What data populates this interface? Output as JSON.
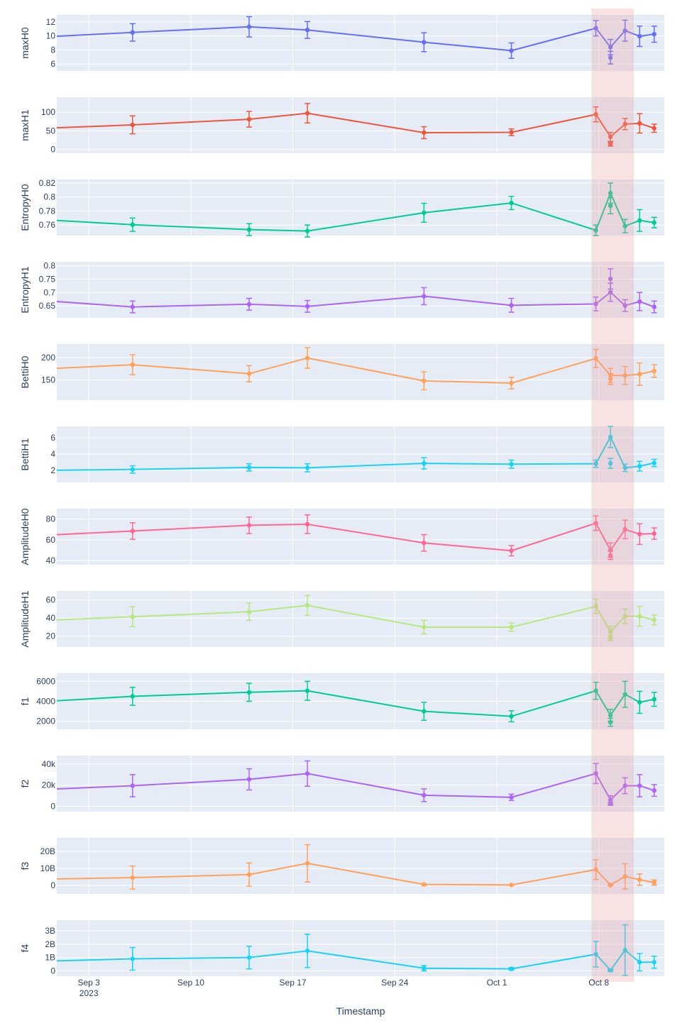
{
  "chart_data": {
    "type": "line",
    "xlabel": "Timestamp",
    "x_tick_labels": [
      "Sep 3",
      "Sep 10",
      "Sep 17",
      "Sep 24",
      "Oct 1",
      "Oct 8"
    ],
    "x_tick_days": [
      3,
      10,
      17,
      24,
      31,
      38
    ],
    "x_year_label": "2023",
    "x_range_days": [
      0.8,
      42.5
    ],
    "highlight_region_days": [
      37.5,
      40.4
    ],
    "highlight_color": "#e8a0a0",
    "grid": true,
    "x": [
      6,
      14,
      18,
      26,
      32,
      37.8,
      38.8,
      39.8,
      40.8,
      41.8
    ],
    "panels": [
      {
        "name": "maxH0",
        "color": "#636efa",
        "ylim": [
          5,
          13
        ],
        "yticks": [
          6,
          8,
          10,
          12
        ],
        "ytick_labels": [
          "6",
          "8",
          "10",
          "12"
        ],
        "lead_value": 9.95,
        "values": [
          10.5,
          11.3,
          10.85,
          9.1,
          7.9,
          11.1,
          8.4,
          10.75,
          9.95,
          10.25
        ],
        "errors": [
          1.25,
          1.45,
          1.2,
          1.35,
          1.1,
          1.1,
          1.1,
          1.5,
          1.45,
          1.15
        ],
        "extra_points": [
          {
            "x": 38.8,
            "value": 6.9,
            "error": 0.9
          }
        ]
      },
      {
        "name": "maxH1",
        "color": "#ef553b",
        "ylim": [
          -10,
          140
        ],
        "yticks": [
          0,
          50,
          100
        ],
        "ytick_labels": [
          "0",
          "50",
          "100"
        ],
        "lead_value": 58,
        "values": [
          66,
          81,
          97,
          45,
          46,
          94,
          34,
          68,
          70,
          57
        ],
        "errors": [
          24,
          21,
          26,
          16,
          9,
          20,
          12,
          15,
          26,
          11
        ],
        "extra_points": [
          {
            "x": 38.8,
            "value": 14,
            "error": 5
          }
        ]
      },
      {
        "name": "EntropyH0",
        "color": "#00cc96",
        "ylim": [
          0.745,
          0.825
        ],
        "yticks": [
          0.76,
          0.78,
          0.8,
          0.82
        ],
        "ytick_labels": [
          "0.76",
          "0.78",
          "0.8",
          "0.82"
        ],
        "lead_value": 0.7665,
        "values": [
          0.7605,
          0.7535,
          0.7515,
          0.7775,
          0.7915,
          0.7525,
          0.8055,
          0.7585,
          0.7665,
          0.7635
        ],
        "errors": [
          0.0095,
          0.0085,
          0.0085,
          0.0135,
          0.0095,
          0.0075,
          0.0145,
          0.0095,
          0.0155,
          0.0075
        ],
        "extra_points": [
          {
            "x": 38.8,
            "value": 0.7875,
            "error": 0.0115
          }
        ]
      },
      {
        "name": "EntropyH1",
        "color": "#ab63fa",
        "ylim": [
          0.605,
          0.815
        ],
        "yticks": [
          0.65,
          0.7,
          0.75,
          0.8
        ],
        "ytick_labels": [
          "0.65",
          "0.7",
          "0.75",
          "0.8"
        ],
        "lead_value": 0.666,
        "values": [
          0.646,
          0.656,
          0.648,
          0.686,
          0.652,
          0.657,
          0.701,
          0.651,
          0.666,
          0.646
        ],
        "errors": [
          0.022,
          0.022,
          0.022,
          0.032,
          0.026,
          0.026,
          0.034,
          0.022,
          0.034,
          0.022
        ],
        "extra_points": [
          {
            "x": 38.8,
            "value": 0.751,
            "error": 0.038
          }
        ]
      },
      {
        "name": "BettiH0",
        "color": "#ffa15a",
        "ylim": [
          105,
          230
        ],
        "yticks": [
          150,
          200
        ],
        "ytick_labels": [
          "150",
          "200"
        ],
        "lead_value": 176,
        "values": [
          184,
          164,
          199,
          148,
          143,
          198,
          160,
          160,
          163,
          170
        ],
        "errors": [
          22,
          18,
          23,
          20,
          13,
          20,
          16,
          20,
          25,
          14
        ],
        "extra_points": [
          {
            "x": 38.8,
            "value": 152,
            "error": 12
          }
        ]
      },
      {
        "name": "BettiH1",
        "color": "#19d3f3",
        "ylim": [
          0.5,
          7.4
        ],
        "yticks": [
          2,
          4,
          6
        ],
        "ytick_labels": [
          "2",
          "4",
          "6"
        ],
        "lead_value": 2,
        "values": [
          2.1,
          2.35,
          2.3,
          2.85,
          2.75,
          2.8,
          6.1,
          2.3,
          2.5,
          2.9
        ],
        "errors": [
          0.45,
          0.45,
          0.5,
          0.7,
          0.5,
          0.45,
          1.3,
          0.45,
          0.6,
          0.45
        ],
        "extra_points": [
          {
            "x": 38.8,
            "value": 2.85,
            "error": 0.6
          }
        ]
      },
      {
        "name": "AmplitudeH0",
        "color": "#ff6692",
        "ylim": [
          36,
          90
        ],
        "yticks": [
          40,
          60,
          80
        ],
        "ytick_labels": [
          "40",
          "60",
          "80"
        ],
        "lead_value": 65,
        "values": [
          68.5,
          74,
          75,
          57,
          49.5,
          76,
          50,
          70,
          65.5,
          66
        ],
        "errors": [
          8,
          8,
          9,
          8,
          5,
          7,
          7,
          9,
          10,
          5.5
        ],
        "extra_points": [
          {
            "x": 38.8,
            "value": 45,
            "error": 4
          }
        ]
      },
      {
        "name": "AmplitudeH1",
        "color": "#b6e880",
        "ylim": [
          8,
          70
        ],
        "yticks": [
          20,
          40,
          60
        ],
        "ytick_labels": [
          "20",
          "40",
          "60"
        ],
        "lead_value": 38,
        "values": [
          41.5,
          47,
          54,
          30,
          30,
          53,
          25,
          42,
          42,
          38
        ],
        "errors": [
          11,
          9.5,
          11,
          7.5,
          4.5,
          8,
          6,
          8,
          11,
          5.5
        ],
        "extra_points": [
          {
            "x": 38.8,
            "value": 18,
            "error": 3
          }
        ]
      },
      {
        "name": "f1",
        "color": "#00cc96",
        "ylim": [
          1200,
          6800
        ],
        "yticks": [
          2000,
          4000,
          6000
        ],
        "ytick_labels": [
          "2000",
          "4000",
          "6000"
        ],
        "lead_value": 4050,
        "values": [
          4500,
          4900,
          5050,
          3000,
          2500,
          5050,
          2600,
          4700,
          3900,
          4200
        ],
        "errors": [
          900,
          900,
          950,
          900,
          550,
          850,
          600,
          1300,
          1100,
          700
        ],
        "extra_points": [
          {
            "x": 38.8,
            "value": 1900,
            "error": 400
          }
        ]
      },
      {
        "name": "f2",
        "color": "#ab63fa",
        "ylim": [
          -5000,
          48000
        ],
        "yticks": [
          0,
          20000,
          40000
        ],
        "ytick_labels": [
          "0",
          "20k",
          "40k"
        ],
        "lead_value": 16500,
        "values": [
          19500,
          25500,
          31000,
          10500,
          8500,
          31000,
          6000,
          19500,
          19500,
          15000
        ],
        "errors": [
          10500,
          10000,
          12000,
          6000,
          3000,
          9500,
          4000,
          7500,
          10500,
          5500
        ],
        "extra_points": [
          {
            "x": 38.8,
            "value": 2500,
            "error": 1500
          }
        ]
      },
      {
        "name": "f3",
        "color": "#ffa15a",
        "ylim": [
          -5000000000,
          28000000000
        ],
        "yticks": [
          0,
          10000000000,
          20000000000
        ],
        "ytick_labels": [
          "0",
          "10B",
          "20B"
        ],
        "lead_value": 3800000000,
        "values": [
          4600000000,
          6400000000,
          13000000000,
          600000000,
          300000000,
          9300000000,
          300000000,
          5300000000,
          3400000000,
          1700000000
        ],
        "errors": [
          6800000000,
          6800000000,
          11000000000,
          500000000,
          200000000,
          5800000000,
          300000000,
          7500000000,
          3300000000,
          1500000000
        ],
        "extra_points": [
          {
            "x": 38.8,
            "value": 100000000,
            "error": 100000000
          }
        ]
      },
      {
        "name": "f4",
        "color": "#19d3f3",
        "ylim": [
          -400000000,
          3800000000
        ],
        "yticks": [
          0,
          1000000000,
          2000000000,
          3000000000
        ],
        "ytick_labels": [
          "0",
          "1B",
          "2B",
          "3B"
        ],
        "lead_value": 750000000,
        "values": [
          900000000,
          1000000000,
          1500000000,
          200000000,
          150000000,
          1250000000,
          50000000,
          1550000000,
          650000000,
          650000000
        ],
        "errors": [
          850000000,
          850000000,
          1250000000,
          200000000,
          100000000,
          950000000,
          80000000,
          1900000000,
          650000000,
          450000000
        ],
        "extra_points": [
          {
            "x": 38.8,
            "value": 40000000,
            "error": 30000000
          }
        ]
      }
    ]
  }
}
